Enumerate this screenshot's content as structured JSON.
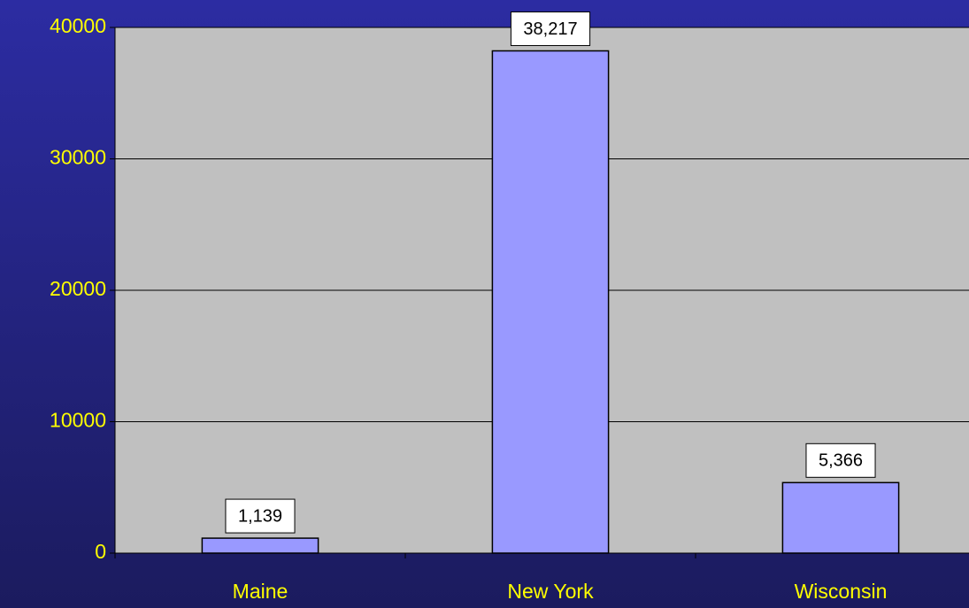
{
  "chart_data": {
    "type": "bar",
    "categories": [
      "Maine",
      "New York",
      "Wisconsin"
    ],
    "values": [
      1139,
      38217,
      5366
    ],
    "value_labels": [
      "1,139",
      "38,217",
      "5,366"
    ],
    "color": "#9999ff",
    "ylim": [
      0,
      40000
    ],
    "yticks": [
      0,
      10000,
      20000,
      30000,
      40000
    ],
    "grid": true
  }
}
